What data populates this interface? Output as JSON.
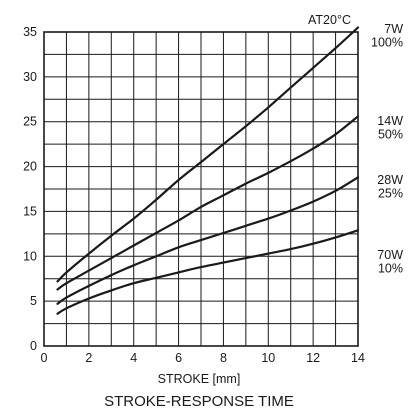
{
  "chart_data": {
    "type": "line",
    "title": "STROKE-RESPONSE TIME",
    "xlabel": "STROKE [mm]",
    "ylabel": "",
    "xlim": [
      0,
      14
    ],
    "ylim": [
      0,
      35
    ],
    "xticks": [
      0,
      2,
      4,
      6,
      8,
      10,
      12,
      14
    ],
    "yticks": [
      0,
      5,
      10,
      15,
      20,
      25,
      30,
      35
    ],
    "grid": true,
    "annotation": "AT20°C",
    "series": [
      {
        "name": "7W 100%",
        "label_lines": [
          "7W",
          "100%"
        ],
        "x": [
          0.6,
          1,
          2,
          3,
          4,
          5,
          6,
          7,
          8,
          9,
          10,
          11,
          12,
          13,
          14
        ],
        "y": [
          7.2,
          8.2,
          10.3,
          12.3,
          14.2,
          16.3,
          18.5,
          20.5,
          22.5,
          24.5,
          26.6,
          28.8,
          31.0,
          33.2,
          35.5
        ]
      },
      {
        "name": "14W 50%",
        "label_lines": [
          "14W",
          "50%"
        ],
        "x": [
          0.6,
          1,
          2,
          3,
          4,
          5,
          6,
          7,
          8,
          9,
          10,
          11,
          12,
          13,
          14
        ],
        "y": [
          6.3,
          7.0,
          8.4,
          9.8,
          11.2,
          12.6,
          14.0,
          15.5,
          16.8,
          18.1,
          19.3,
          20.6,
          22.0,
          23.6,
          25.6
        ]
      },
      {
        "name": "28W 25%",
        "label_lines": [
          "28W",
          "25%"
        ],
        "x": [
          0.6,
          1,
          2,
          3,
          4,
          5,
          6,
          7,
          8,
          9,
          10,
          11,
          12,
          13,
          14
        ],
        "y": [
          4.7,
          5.4,
          6.7,
          7.9,
          9.0,
          10.0,
          11.0,
          11.8,
          12.6,
          13.4,
          14.2,
          15.1,
          16.1,
          17.3,
          18.8
        ]
      },
      {
        "name": "70W 10%",
        "label_lines": [
          "70W",
          "10%"
        ],
        "x": [
          0.6,
          1,
          2,
          3,
          4,
          5,
          6,
          7,
          8,
          9,
          10,
          11,
          12,
          13,
          14
        ],
        "y": [
          3.6,
          4.2,
          5.3,
          6.2,
          7.0,
          7.6,
          8.2,
          8.8,
          9.3,
          9.8,
          10.3,
          10.8,
          11.4,
          12.1,
          12.9
        ]
      }
    ]
  }
}
